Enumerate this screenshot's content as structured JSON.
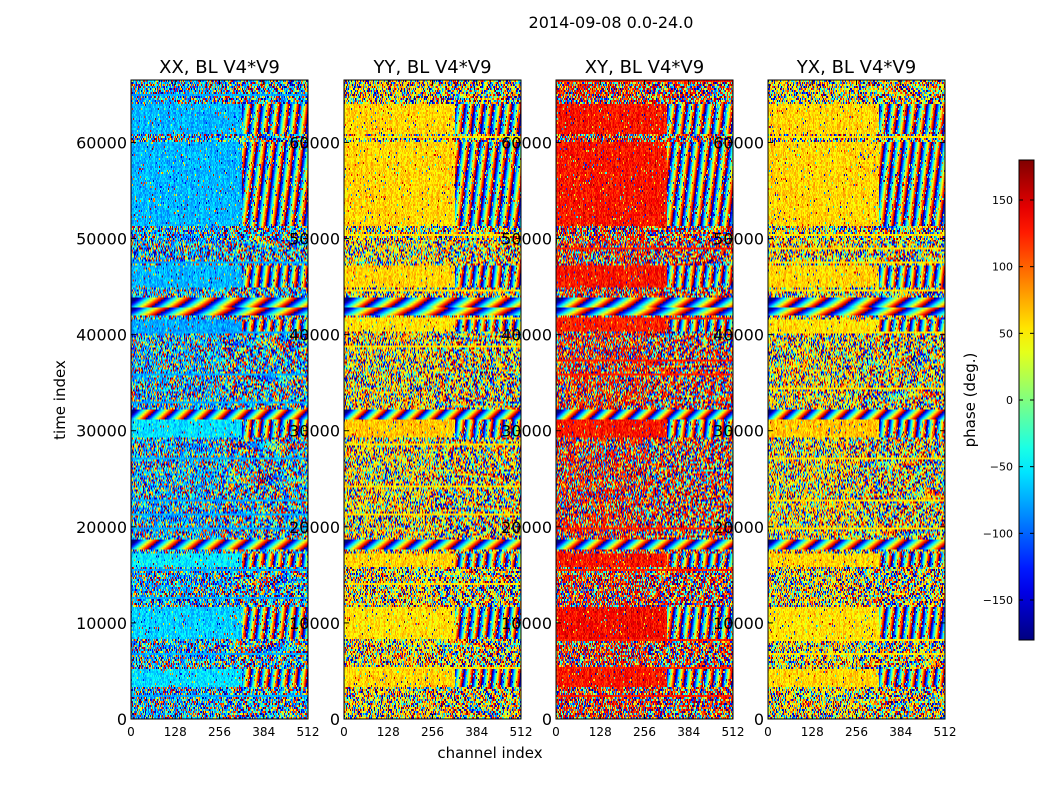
{
  "chart_data": {
    "type": "heatmap",
    "title": "2014-09-08 0.0-24.0",
    "xlabel": "channel index",
    "ylabel": "time index",
    "xlim": [
      0,
      512
    ],
    "ylim": [
      0,
      66500
    ],
    "xticks": [
      0,
      128,
      256,
      384,
      512
    ],
    "yticks": [
      0,
      10000,
      20000,
      30000,
      40000,
      50000,
      60000
    ],
    "grid": false,
    "panels": [
      {
        "title": "XX, BL V4*V9",
        "dominant_phase": -75,
        "coherent_bands": [
          [
            51500,
            60000,
            -75
          ],
          [
            61000,
            64000,
            -75
          ],
          [
            45000,
            47000,
            -75
          ],
          [
            40500,
            41500,
            -80
          ],
          [
            29500,
            31000,
            -60
          ],
          [
            15800,
            17200,
            -55
          ],
          [
            8500,
            11500,
            -65
          ],
          [
            3500,
            5000,
            -60
          ]
        ],
        "bright_channel_range": [
          0,
          320
        ]
      },
      {
        "title": "YY, BL V4*V9",
        "dominant_phase": 55,
        "coherent_bands": [
          [
            51500,
            60000,
            55
          ],
          [
            61000,
            64000,
            55
          ],
          [
            45000,
            47000,
            55
          ],
          [
            40500,
            41500,
            50
          ],
          [
            29500,
            31000,
            60
          ],
          [
            15800,
            17200,
            55
          ],
          [
            8500,
            11500,
            50
          ],
          [
            3500,
            5000,
            55
          ]
        ],
        "bright_channel_range": [
          0,
          320
        ]
      },
      {
        "title": "XY, BL V4*V9",
        "dominant_phase": 125,
        "coherent_bands": [
          [
            51500,
            60000,
            125
          ],
          [
            61000,
            64000,
            125
          ],
          [
            45000,
            47000,
            125
          ],
          [
            40500,
            41500,
            120
          ],
          [
            29500,
            31000,
            125
          ],
          [
            15800,
            17200,
            125
          ],
          [
            8500,
            11500,
            130
          ],
          [
            3500,
            5000,
            125
          ]
        ],
        "bright_channel_range": [
          0,
          320
        ]
      },
      {
        "title": "YX, BL V4*V9",
        "dominant_phase": 55,
        "coherent_bands": [
          [
            51500,
            60000,
            55
          ],
          [
            61000,
            64000,
            55
          ],
          [
            45000,
            47000,
            55
          ],
          [
            40500,
            41500,
            50
          ],
          [
            29500,
            31000,
            60
          ],
          [
            15800,
            17200,
            55
          ],
          [
            8500,
            11500,
            50
          ],
          [
            3500,
            5000,
            55
          ]
        ],
        "bright_channel_range": [
          0,
          320
        ]
      }
    ],
    "colorbar": {
      "label": "phase (deg.)",
      "range": [
        -180,
        180
      ],
      "colormap": "jet",
      "ticks": [
        150,
        100,
        50,
        0,
        -50,
        -100,
        -150
      ],
      "tick_labels": [
        "150",
        "100",
        "50",
        "0",
        "−50",
        "−100",
        "−150"
      ]
    }
  }
}
